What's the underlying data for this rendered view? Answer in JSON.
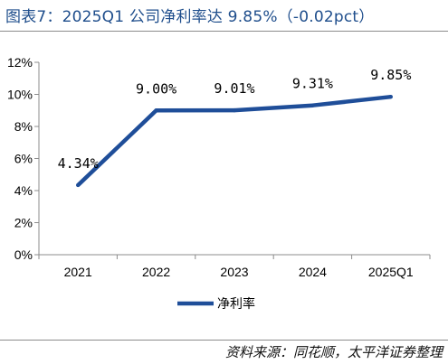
{
  "figure": {
    "title": "图表7：2025Q1 公司净利率达 9.85%（-0.02pct）",
    "source": "资料来源：同花顺，太平洋证券整理"
  },
  "chart_data": {
    "type": "line",
    "title": "",
    "xlabel": "",
    "ylabel": "",
    "categories": [
      "2021",
      "2022",
      "2023",
      "2024",
      "2025Q1"
    ],
    "series": [
      {
        "name": "净利率",
        "values": [
          4.34,
          9.0,
          9.01,
          9.31,
          9.85
        ],
        "data_labels": [
          "4.34%",
          "9.00%",
          "9.01%",
          "9.31%",
          "9.85%"
        ],
        "color": "#1f4e99"
      }
    ],
    "ylim": [
      0,
      12
    ],
    "y_ticks": [
      0,
      2,
      4,
      6,
      8,
      10,
      12
    ],
    "y_tick_labels": [
      "0%",
      "2%",
      "4%",
      "6%",
      "8%",
      "10%",
      "12%"
    ],
    "grid": false,
    "legend_position": "bottom-center"
  }
}
